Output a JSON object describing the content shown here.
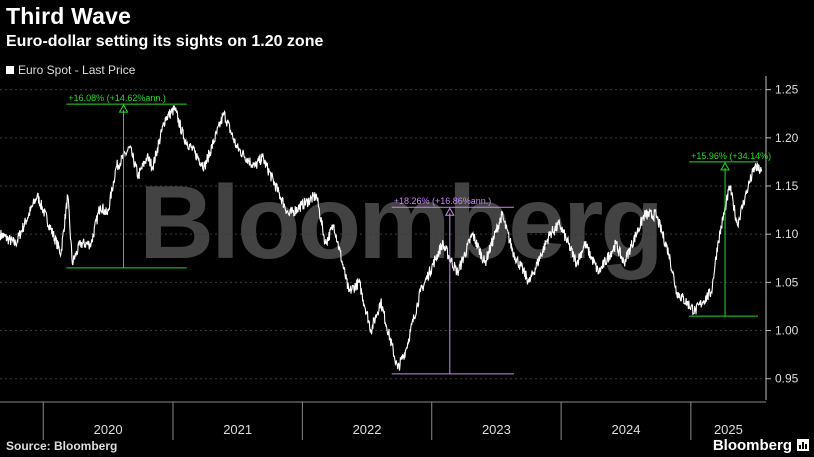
{
  "header": {
    "title": "Third Wave",
    "subtitle": "Euro-dollar setting its sights on 1.20 zone"
  },
  "legend": {
    "label": "Euro Spot - Last Price",
    "color": "#ffffff"
  },
  "footer": {
    "source": "Source: Bloomberg",
    "brand": "Bloomberg"
  },
  "watermark": "Bloomberg",
  "colors": {
    "background": "#000000",
    "line": "#ffffff",
    "green": "#22dd22",
    "purple": "#c58af0",
    "grid": "#3a3a3a"
  },
  "chart_data": {
    "type": "line",
    "title": "Third Wave",
    "subtitle": "Euro-dollar setting its sights on 1.20 zone",
    "x_tick_labels": [
      "2020",
      "2021",
      "2022",
      "2023",
      "2024",
      "2025"
    ],
    "x_range": [
      "2019-09",
      "2025-08"
    ],
    "ylim": [
      0.93,
      1.26
    ],
    "y_ticks": [
      0.95,
      1.0,
      1.05,
      1.1,
      1.15,
      1.2,
      1.25
    ],
    "y_tick_labels": [
      "0.95",
      "1.00",
      "1.05",
      "1.10",
      "1.15",
      "1.20",
      "1.25"
    ],
    "grid": "horizontal-dashed",
    "legend_position": "top-left",
    "series": [
      {
        "name": "Euro Spot - Last Price",
        "points": [
          [
            "2019-09-01",
            1.1
          ],
          [
            "2019-10-15",
            1.09
          ],
          [
            "2019-12-15",
            1.14
          ],
          [
            "2020-02-20",
            1.08
          ],
          [
            "2020-03-10",
            1.14
          ],
          [
            "2020-03-23",
            1.07
          ],
          [
            "2020-04-15",
            1.09
          ],
          [
            "2020-05-15",
            1.09
          ],
          [
            "2020-06-10",
            1.13
          ],
          [
            "2020-06-30",
            1.12
          ],
          [
            "2020-07-25",
            1.17
          ],
          [
            "2020-08-15",
            1.18
          ],
          [
            "2020-09-01",
            1.19
          ],
          [
            "2020-09-25",
            1.16
          ],
          [
            "2020-10-20",
            1.18
          ],
          [
            "2020-11-05",
            1.17
          ],
          [
            "2020-12-10",
            1.22
          ],
          [
            "2021-01-06",
            1.23
          ],
          [
            "2021-02-01",
            1.2
          ],
          [
            "2021-03-31",
            1.17
          ],
          [
            "2021-05-25",
            1.225
          ],
          [
            "2021-06-30",
            1.19
          ],
          [
            "2021-08-20",
            1.17
          ],
          [
            "2021-09-10",
            1.18
          ],
          [
            "2021-11-24",
            1.12
          ],
          [
            "2021-12-30",
            1.13
          ],
          [
            "2022-02-10",
            1.14
          ],
          [
            "2022-03-07",
            1.09
          ],
          [
            "2022-03-31",
            1.11
          ],
          [
            "2022-05-12",
            1.04
          ],
          [
            "2022-06-10",
            1.05
          ],
          [
            "2022-07-14",
            1.0
          ],
          [
            "2022-08-10",
            1.03
          ],
          [
            "2022-09-27",
            0.96
          ],
          [
            "2022-10-20",
            0.98
          ],
          [
            "2022-11-30",
            1.04
          ],
          [
            "2023-01-31",
            1.09
          ],
          [
            "2023-03-15",
            1.06
          ],
          [
            "2023-04-26",
            1.1
          ],
          [
            "2023-05-31",
            1.07
          ],
          [
            "2023-07-18",
            1.12
          ],
          [
            "2023-08-20",
            1.08
          ],
          [
            "2023-10-03",
            1.05
          ],
          [
            "2023-11-30",
            1.1
          ],
          [
            "2023-12-28",
            1.11
          ],
          [
            "2024-02-14",
            1.07
          ],
          [
            "2024-03-08",
            1.09
          ],
          [
            "2024-04-16",
            1.06
          ],
          [
            "2024-06-04",
            1.09
          ],
          [
            "2024-06-26",
            1.07
          ],
          [
            "2024-08-23",
            1.12
          ],
          [
            "2024-09-25",
            1.12
          ],
          [
            "2024-10-31",
            1.08
          ],
          [
            "2024-11-22",
            1.04
          ],
          [
            "2025-01-13",
            1.02
          ],
          [
            "2025-02-03",
            1.03
          ],
          [
            "2025-02-28",
            1.04
          ],
          [
            "2025-03-18",
            1.09
          ],
          [
            "2025-04-21",
            1.15
          ],
          [
            "2025-05-12",
            1.11
          ],
          [
            "2025-06-12",
            1.15
          ],
          [
            "2025-07-01",
            1.17
          ],
          [
            "2025-07-20",
            1.165
          ]
        ]
      }
    ],
    "annotations": [
      {
        "label": "+16.08% (+14.62%ann.)",
        "color": "#22dd22",
        "x_start": "2020-03-23",
        "x_end": "2021-01-06",
        "y_low": 1.065,
        "y_high": 1.235
      },
      {
        "label": "+18.26% (+16.86%ann.)",
        "color": "#c58af0",
        "x_start": "2022-09-27",
        "x_end": "2023-07-18",
        "y_low": 0.955,
        "y_high": 1.128
      },
      {
        "label": "+15.96% (+34.14%)",
        "color": "#22dd22",
        "x_start": "2025-01-13",
        "x_end": "2025-07-01",
        "y_low": 1.015,
        "y_high": 1.175
      }
    ]
  }
}
